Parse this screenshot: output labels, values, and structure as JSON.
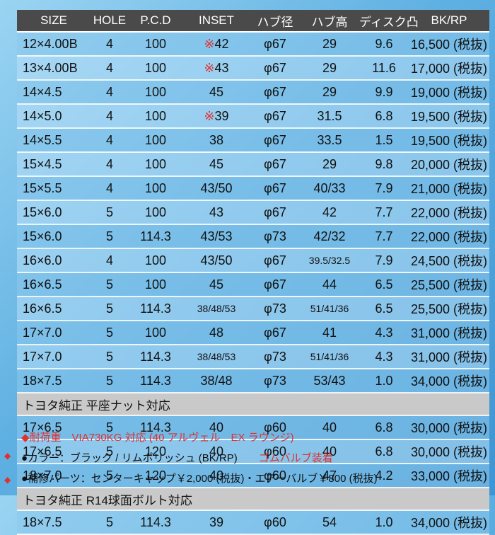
{
  "headers": [
    "SIZE",
    "HOLE",
    "P.C.D",
    "INSET",
    "ハブ径",
    "ハブ高",
    "ディスク凸",
    "BK/RP"
  ],
  "rows": [
    {
      "size": "12×4.00B",
      "hole": "4",
      "pcd": "100",
      "inset_mark": "※",
      "inset": "42",
      "hub": "φ67",
      "hub_h": "29",
      "disc": "9.6",
      "price": "16,500 (税抜)"
    },
    {
      "size": "13×4.00B",
      "hole": "4",
      "pcd": "100",
      "inset_mark": "※",
      "inset": "43",
      "hub": "φ67",
      "hub_h": "29",
      "disc": "11.6",
      "price": "17,000 (税抜)"
    },
    {
      "size": "14×4.5",
      "hole": "4",
      "pcd": "100",
      "inset_mark": "",
      "inset": "45",
      "hub": "φ67",
      "hub_h": "29",
      "disc": "9.9",
      "price": "19,000 (税抜)"
    },
    {
      "size": "14×5.0",
      "hole": "4",
      "pcd": "100",
      "inset_mark": "※",
      "inset": "39",
      "hub": "φ67",
      "hub_h": "31.5",
      "disc": "6.8",
      "price": "19,500 (税抜)"
    },
    {
      "size": "14×5.5",
      "hole": "4",
      "pcd": "100",
      "inset_mark": "",
      "inset": "38",
      "hub": "φ67",
      "hub_h": "33.5",
      "disc": "1.5",
      "price": "19,500 (税抜)"
    },
    {
      "size": "15×4.5",
      "hole": "4",
      "pcd": "100",
      "inset_mark": "",
      "inset": "45",
      "hub": "φ67",
      "hub_h": "29",
      "disc": "9.8",
      "price": "20,000 (税抜)"
    },
    {
      "size": "15×5.5",
      "hole": "4",
      "pcd": "100",
      "inset_mark": "",
      "inset": "43/50",
      "hub": "φ67",
      "hub_h": "40/33",
      "disc": "7.9",
      "price": "21,000 (税抜)"
    },
    {
      "size": "15×6.0",
      "hole": "5",
      "pcd": "100",
      "inset_mark": "",
      "inset": "43",
      "hub": "φ67",
      "hub_h": "42",
      "disc": "7.7",
      "price": "22,000 (税抜)"
    },
    {
      "size": "15×6.0",
      "hole": "5",
      "pcd": "114.3",
      "inset_mark": "",
      "inset": "43/53",
      "hub": "φ73",
      "hub_h": "42/32",
      "disc": "7.7",
      "price": "22,000 (税抜)"
    },
    {
      "size": "16×6.0",
      "hole": "4",
      "pcd": "100",
      "inset_mark": "",
      "inset": "43/50",
      "hub": "φ67",
      "hub_h": "39.5/32.5",
      "disc": "7.9",
      "price": "24,500 (税抜)"
    },
    {
      "size": "16×6.5",
      "hole": "5",
      "pcd": "100",
      "inset_mark": "",
      "inset": "45",
      "hub": "φ67",
      "hub_h": "44",
      "disc": "6.5",
      "price": "25,500 (税抜)"
    },
    {
      "size": "16×6.5",
      "hole": "5",
      "pcd": "114.3",
      "inset_mark": "",
      "inset": "38/48/53",
      "hub": "φ73",
      "hub_h": "51/41/36",
      "disc": "6.5",
      "price": "25,500 (税抜)"
    },
    {
      "size": "17×7.0",
      "hole": "5",
      "pcd": "100",
      "inset_mark": "",
      "inset": "48",
      "hub": "φ67",
      "hub_h": "41",
      "disc": "4.3",
      "price": "31,000 (税抜)"
    },
    {
      "size": "17×7.0",
      "hole": "5",
      "pcd": "114.3",
      "inset_mark": "",
      "inset": "38/48/53",
      "hub": "φ73",
      "hub_h": "51/41/36",
      "disc": "4.3",
      "price": "31,000 (税抜)"
    },
    {
      "size": "18×7.5",
      "hole": "5",
      "pcd": "114.3",
      "inset_mark": "",
      "inset": "38/48",
      "hub": "φ73",
      "hub_h": "53/43",
      "disc": "1.0",
      "price": "34,000 (税抜)"
    }
  ],
  "section1": {
    "title": "トヨタ純正 平座ナット対応",
    "rows": [
      {
        "diamond": "",
        "size": "17×6.5",
        "hole": "5",
        "pcd": "114.3",
        "inset": "40",
        "hub": "φ60",
        "hub_h": "40",
        "disc": "6.8",
        "price": "30,000 (税抜)"
      },
      {
        "diamond": "◆",
        "size": "17×6.5",
        "hole": "5",
        "pcd": "120",
        "inset": "40",
        "hub": "φ60",
        "hub_h": "40",
        "disc": "6.8",
        "price": "30,000 (税抜)"
      },
      {
        "diamond": "◆",
        "size": "18×7.0",
        "hole": "5",
        "pcd": "120",
        "inset": "40",
        "hub": "φ60",
        "hub_h": "47",
        "disc": "4.2",
        "price": "33,000 (税抜)"
      }
    ]
  },
  "section2": {
    "title": "トヨタ純正 R14球面ボルト対応",
    "rows": [
      {
        "size": "18×7.5",
        "hole": "5",
        "pcd": "114.3",
        "inset": "39",
        "hub": "φ60",
        "hub_h": "54",
        "disc": "1.0",
        "price": "34,000 (税抜)"
      }
    ]
  },
  "notes": {
    "line1": "◆耐荷重　VIA730KG 対応 (40 アルヴェル　EX ラウンジ)",
    "line2": "●カラー：ブラック / リムポリッシュ (BK/RP)",
    "line2_red": "ゴムバルブ装着",
    "line3": "●補修パーツ：センターキャップ￥2,000 (税抜)・エアーバルブ￥800 (税抜)"
  },
  "colors": {
    "header_bg": "#4a4a4a",
    "accent_red": "#e03030",
    "section_bg": "#c9c9c9"
  }
}
